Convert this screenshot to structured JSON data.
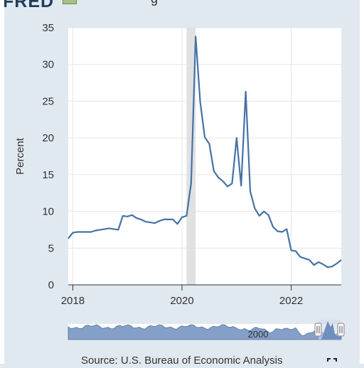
{
  "header": {
    "logo_text": "FRED",
    "title_fragment": "g"
  },
  "source_text": "Source: U.S. Bureau of Economic Analysis",
  "navigator_label": "2000",
  "colors": {
    "line": "#4572a7",
    "recession": "#e1e1e1",
    "navigator_fill": "#6f8fbf"
  },
  "chart_data": {
    "type": "line",
    "ylabel": "Percent",
    "xlabel": "",
    "ylim": [
      0,
      35
    ],
    "xlim": [
      "2017-12",
      "2022-12"
    ],
    "y_ticks": [
      0,
      5,
      10,
      15,
      20,
      25,
      30,
      35
    ],
    "x_ticks": [
      "2018",
      "2020",
      "2022"
    ],
    "recession": {
      "start": "2020-02",
      "end": "2020-04"
    },
    "series": [
      {
        "x": [
          "2017-12",
          "2018-01",
          "2018-02",
          "2018-03",
          "2018-04",
          "2018-05",
          "2018-06",
          "2018-07",
          "2018-08",
          "2018-09",
          "2018-10",
          "2018-11",
          "2018-12",
          "2019-01",
          "2019-02",
          "2019-03",
          "2019-04",
          "2019-05",
          "2019-06",
          "2019-07",
          "2019-08",
          "2019-09",
          "2019-10",
          "2019-11",
          "2019-12",
          "2020-01",
          "2020-02",
          "2020-03",
          "2020-04",
          "2020-05",
          "2020-06",
          "2020-07",
          "2020-08",
          "2020-09",
          "2020-10",
          "2020-11",
          "2020-12",
          "2021-01",
          "2021-02",
          "2021-03",
          "2021-04",
          "2021-05",
          "2021-06",
          "2021-07",
          "2021-08",
          "2021-09",
          "2021-10",
          "2021-11",
          "2021-12",
          "2022-01",
          "2022-02",
          "2022-03",
          "2022-04",
          "2022-05",
          "2022-06",
          "2022-07",
          "2022-08",
          "2022-09",
          "2022-10",
          "2022-11",
          "2022-12"
        ],
        "values": [
          6.3,
          7.1,
          7.2,
          7.2,
          7.2,
          7.2,
          7.4,
          7.5,
          7.6,
          7.7,
          7.6,
          7.5,
          9.4,
          9.3,
          9.5,
          9.1,
          8.9,
          8.6,
          8.5,
          8.4,
          8.7,
          8.9,
          8.9,
          8.9,
          8.3,
          9.2,
          9.4,
          13.8,
          33.8,
          24.9,
          20.1,
          19.2,
          15.5,
          14.6,
          14.1,
          13.4,
          13.8,
          20.0,
          13.5,
          26.3,
          12.7,
          10.4,
          9.4,
          10.0,
          9.5,
          7.9,
          7.3,
          7.2,
          7.6,
          4.7,
          4.6,
          3.8,
          3.6,
          3.4,
          2.7,
          3.1,
          2.8,
          2.4,
          2.5,
          2.9,
          3.4
        ]
      }
    ]
  }
}
